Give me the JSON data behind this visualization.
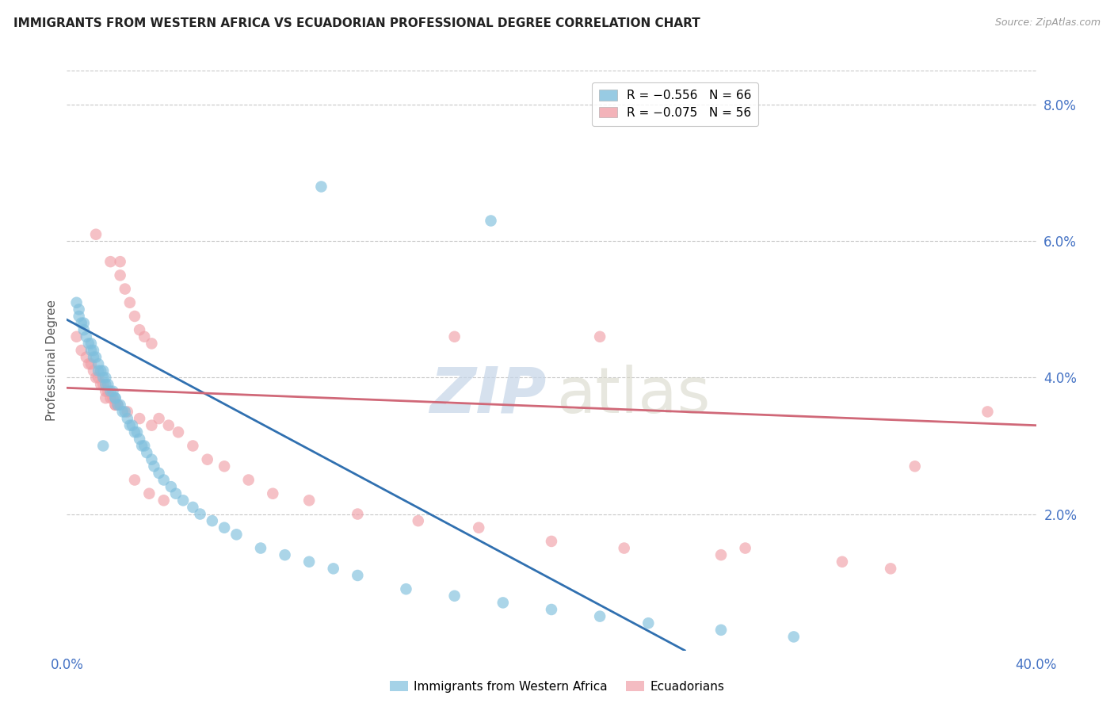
{
  "title": "IMMIGRANTS FROM WESTERN AFRICA VS ECUADORIAN PROFESSIONAL DEGREE CORRELATION CHART",
  "source": "Source: ZipAtlas.com",
  "ylabel": "Professional Degree",
  "right_yticks": [
    "8.0%",
    "6.0%",
    "4.0%",
    "2.0%"
  ],
  "right_ytick_vals": [
    0.08,
    0.06,
    0.04,
    0.02
  ],
  "xmin": 0.0,
  "xmax": 0.4,
  "ymin": 0.0,
  "ymax": 0.085,
  "legend_r1": "R = -0.556   N = 66",
  "legend_r2": "R = -0.075   N = 56",
  "blue_color": "#7fbfdd",
  "pink_color": "#f0a0a8",
  "blue_line_color": "#3070b0",
  "pink_line_color": "#d06878",
  "blue_trend_x": [
    0.0,
    0.255
  ],
  "blue_trend_y": [
    0.0485,
    0.0
  ],
  "pink_trend_x": [
    0.0,
    0.4
  ],
  "pink_trend_y": [
    0.0385,
    0.033
  ],
  "blue_x": [
    0.004,
    0.005,
    0.005,
    0.006,
    0.007,
    0.007,
    0.008,
    0.009,
    0.01,
    0.01,
    0.011,
    0.011,
    0.012,
    0.013,
    0.013,
    0.014,
    0.015,
    0.015,
    0.016,
    0.016,
    0.017,
    0.018,
    0.019,
    0.02,
    0.02,
    0.021,
    0.022,
    0.023,
    0.024,
    0.025,
    0.026,
    0.027,
    0.028,
    0.029,
    0.03,
    0.031,
    0.032,
    0.033,
    0.035,
    0.036,
    0.038,
    0.04,
    0.043,
    0.045,
    0.048,
    0.052,
    0.055,
    0.06,
    0.065,
    0.07,
    0.08,
    0.09,
    0.1,
    0.11,
    0.12,
    0.14,
    0.16,
    0.18,
    0.2,
    0.22,
    0.24,
    0.27,
    0.3,
    0.105,
    0.175,
    0.015
  ],
  "blue_y": [
    0.051,
    0.05,
    0.049,
    0.048,
    0.048,
    0.047,
    0.046,
    0.045,
    0.045,
    0.044,
    0.044,
    0.043,
    0.043,
    0.042,
    0.041,
    0.041,
    0.041,
    0.04,
    0.04,
    0.039,
    0.039,
    0.038,
    0.038,
    0.037,
    0.037,
    0.036,
    0.036,
    0.035,
    0.035,
    0.034,
    0.033,
    0.033,
    0.032,
    0.032,
    0.031,
    0.03,
    0.03,
    0.029,
    0.028,
    0.027,
    0.026,
    0.025,
    0.024,
    0.023,
    0.022,
    0.021,
    0.02,
    0.019,
    0.018,
    0.017,
    0.015,
    0.014,
    0.013,
    0.012,
    0.011,
    0.009,
    0.008,
    0.007,
    0.006,
    0.005,
    0.004,
    0.003,
    0.002,
    0.068,
    0.063,
    0.03
  ],
  "pink_x": [
    0.004,
    0.006,
    0.008,
    0.009,
    0.01,
    0.011,
    0.012,
    0.013,
    0.014,
    0.015,
    0.016,
    0.017,
    0.018,
    0.019,
    0.02,
    0.021,
    0.022,
    0.024,
    0.026,
    0.028,
    0.03,
    0.032,
    0.035,
    0.038,
    0.042,
    0.046,
    0.052,
    0.058,
    0.065,
    0.075,
    0.085,
    0.1,
    0.12,
    0.145,
    0.17,
    0.2,
    0.23,
    0.27,
    0.32,
    0.35,
    0.38,
    0.16,
    0.22,
    0.28,
    0.34,
    0.016,
    0.02,
    0.025,
    0.03,
    0.035,
    0.012,
    0.018,
    0.022,
    0.028,
    0.034,
    0.04
  ],
  "pink_y": [
    0.046,
    0.044,
    0.043,
    0.042,
    0.042,
    0.041,
    0.04,
    0.04,
    0.039,
    0.039,
    0.038,
    0.038,
    0.037,
    0.037,
    0.036,
    0.036,
    0.055,
    0.053,
    0.051,
    0.049,
    0.047,
    0.046,
    0.045,
    0.034,
    0.033,
    0.032,
    0.03,
    0.028,
    0.027,
    0.025,
    0.023,
    0.022,
    0.02,
    0.019,
    0.018,
    0.016,
    0.015,
    0.014,
    0.013,
    0.027,
    0.035,
    0.046,
    0.046,
    0.015,
    0.012,
    0.037,
    0.036,
    0.035,
    0.034,
    0.033,
    0.061,
    0.057,
    0.057,
    0.025,
    0.023,
    0.022
  ],
  "bottom_legend_labels": [
    "Immigrants from Western Africa",
    "Ecuadorians"
  ]
}
